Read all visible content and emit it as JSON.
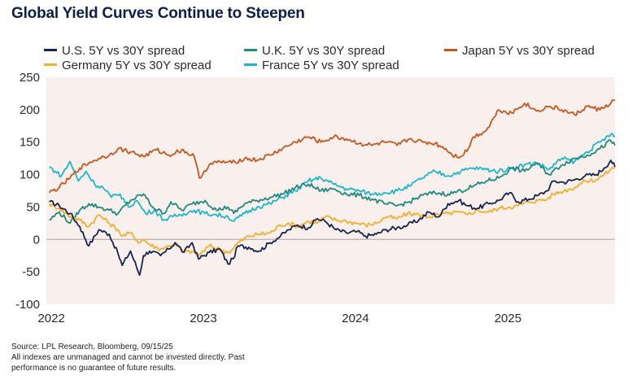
{
  "title": "Global Yield Curves Continue to Steepen",
  "footnotes": {
    "source": "Source: LPL Research, Bloomberg, 09/15/25",
    "line2": "All indexes are unmanaged and cannot be invested directly. Past",
    "line3": "performance is no guarantee of future results."
  },
  "colors": {
    "plot_background": "#f9efed",
    "zero_line": "#a6a6a6"
  },
  "chart_data": {
    "type": "line",
    "title": "Global Yield Curves Continue to Steepen",
    "xlabel": "",
    "ylabel": "",
    "x_ticks": [
      "2022",
      "2023",
      "2024",
      "2025"
    ],
    "x_range": [
      "2021-12-20",
      "2025-09-15"
    ],
    "y_ticks": [
      -100,
      -50,
      0,
      50,
      100,
      150,
      200,
      250
    ],
    "ylim": [
      -100,
      250
    ],
    "grid": false,
    "legend_position": "top",
    "series": [
      {
        "name": "U.S. 5Y vs 30Y spread",
        "color": "#17244e",
        "x": [
          "2021-12-27",
          "2022-01-20",
          "2022-02-15",
          "2022-03-10",
          "2022-04-01",
          "2022-04-25",
          "2022-05-20",
          "2022-06-10",
          "2022-06-20",
          "2022-07-10",
          "2022-08-01",
          "2022-08-10",
          "2022-08-25",
          "2022-09-20",
          "2022-10-10",
          "2022-10-25",
          "2022-11-15",
          "2022-12-05",
          "2022-12-20",
          "2023-01-15",
          "2023-02-10",
          "2023-03-01",
          "2023-03-13",
          "2023-03-25",
          "2023-04-20",
          "2023-05-15",
          "2023-06-10",
          "2023-07-05",
          "2023-07-25",
          "2023-08-15",
          "2023-09-10",
          "2023-10-01",
          "2023-10-20",
          "2023-11-15",
          "2023-12-10",
          "2024-01-05",
          "2024-01-25",
          "2024-02-20",
          "2024-03-15",
          "2024-04-10",
          "2024-05-05",
          "2024-06-01",
          "2024-06-25",
          "2024-07-20",
          "2024-08-10",
          "2024-09-05",
          "2024-09-25",
          "2024-10-20",
          "2024-11-15",
          "2024-12-10",
          "2025-01-05",
          "2025-01-25",
          "2025-02-20",
          "2025-03-15",
          "2025-04-05",
          "2025-04-20",
          "2025-05-15",
          "2025-06-10",
          "2025-07-05",
          "2025-08-01",
          "2025-08-20",
          "2025-09-05",
          "2025-09-15"
        ],
        "values": [
          58,
          52,
          40,
          20,
          -10,
          15,
          8,
          -22,
          -40,
          -18,
          -55,
          -25,
          -18,
          -25,
          -15,
          -5,
          -20,
          -5,
          -30,
          -20,
          -15,
          -38,
          -30,
          -10,
          -12,
          -18,
          -5,
          5,
          15,
          22,
          18,
          32,
          28,
          15,
          10,
          12,
          5,
          8,
          15,
          18,
          22,
          30,
          42,
          35,
          55,
          60,
          52,
          48,
          55,
          60,
          72,
          58,
          62,
          68,
          75,
          90,
          88,
          92,
          98,
          100,
          110,
          122,
          112
        ]
      },
      {
        "name": "Germany 5Y vs 30Y spread",
        "color": "#f4ae2f",
        "x": [
          "2021-12-27",
          "2022-01-20",
          "2022-02-15",
          "2022-03-10",
          "2022-04-01",
          "2022-04-25",
          "2022-05-20",
          "2022-06-10",
          "2022-06-20",
          "2022-07-10",
          "2022-08-01",
          "2022-08-10",
          "2022-08-25",
          "2022-09-20",
          "2022-10-10",
          "2022-10-25",
          "2022-11-15",
          "2022-12-05",
          "2022-12-20",
          "2023-01-15",
          "2023-02-10",
          "2023-03-01",
          "2023-03-13",
          "2023-03-25",
          "2023-04-20",
          "2023-05-15",
          "2023-06-10",
          "2023-07-05",
          "2023-07-25",
          "2023-08-15",
          "2023-09-10",
          "2023-10-01",
          "2023-10-20",
          "2023-11-15",
          "2023-12-10",
          "2024-01-05",
          "2024-01-25",
          "2024-02-20",
          "2024-03-15",
          "2024-04-10",
          "2024-05-05",
          "2024-06-01",
          "2024-06-25",
          "2024-07-20",
          "2024-08-10",
          "2024-09-05",
          "2024-09-25",
          "2024-10-20",
          "2024-11-15",
          "2024-12-10",
          "2025-01-05",
          "2025-01-25",
          "2025-02-20",
          "2025-03-15",
          "2025-04-05",
          "2025-04-20",
          "2025-05-15",
          "2025-06-10",
          "2025-07-05",
          "2025-08-01",
          "2025-08-20",
          "2025-09-05",
          "2025-09-15"
        ],
        "values": [
          55,
          48,
          35,
          30,
          20,
          38,
          25,
          15,
          5,
          10,
          -5,
          0,
          -8,
          -15,
          -10,
          -5,
          -20,
          -18,
          -25,
          -10,
          -15,
          -20,
          -15,
          -5,
          5,
          8,
          10,
          22,
          25,
          20,
          28,
          25,
          35,
          30,
          28,
          25,
          22,
          25,
          35,
          32,
          40,
          38,
          35,
          38,
          40,
          42,
          38,
          45,
          42,
          48,
          50,
          52,
          58,
          60,
          62,
          70,
          75,
          80,
          90,
          92,
          100,
          108,
          112
        ]
      },
      {
        "name": "U.K. 5Y vs 30Y spread",
        "color": "#1f8a7f",
        "x": [
          "2021-12-27",
          "2022-01-20",
          "2022-02-15",
          "2022-03-10",
          "2022-04-01",
          "2022-04-25",
          "2022-05-20",
          "2022-06-10",
          "2022-07-10",
          "2022-08-10",
          "2022-09-01",
          "2022-09-28",
          "2022-10-15",
          "2022-11-10",
          "2022-12-05",
          "2023-01-05",
          "2023-02-01",
          "2023-03-01",
          "2023-03-15",
          "2023-04-10",
          "2023-05-10",
          "2023-06-10",
          "2023-07-10",
          "2023-08-10",
          "2023-09-10",
          "2023-10-10",
          "2023-11-10",
          "2023-12-10",
          "2024-01-10",
          "2024-02-10",
          "2024-03-10",
          "2024-04-10",
          "2024-05-10",
          "2024-06-10",
          "2024-07-10",
          "2024-08-10",
          "2024-09-10",
          "2024-10-10",
          "2024-11-10",
          "2024-12-10",
          "2025-01-10",
          "2025-02-10",
          "2025-03-10",
          "2025-04-10",
          "2025-05-10",
          "2025-06-10",
          "2025-07-10",
          "2025-08-10",
          "2025-09-05",
          "2025-09-15"
        ],
        "values": [
          30,
          42,
          25,
          45,
          55,
          50,
          45,
          40,
          60,
          70,
          50,
          40,
          58,
          45,
          55,
          60,
          45,
          50,
          40,
          55,
          60,
          65,
          70,
          80,
          85,
          75,
          78,
          70,
          68,
          62,
          55,
          52,
          58,
          68,
          72,
          70,
          75,
          82,
          90,
          95,
          110,
          105,
          118,
          100,
          115,
          125,
          130,
          140,
          152,
          145
        ]
      },
      {
        "name": "France 5Y vs 30Y spread",
        "color": "#1eb6cf",
        "x": [
          "2021-12-27",
          "2022-01-10",
          "2022-01-25",
          "2022-02-15",
          "2022-03-07",
          "2022-03-25",
          "2022-04-15",
          "2022-05-05",
          "2022-05-25",
          "2022-06-15",
          "2022-07-05",
          "2022-07-25",
          "2022-08-15",
          "2022-09-05",
          "2022-09-28",
          "2022-10-20",
          "2022-11-15",
          "2022-12-10",
          "2023-01-05",
          "2023-02-01",
          "2023-03-01",
          "2023-03-15",
          "2023-04-10",
          "2023-05-10",
          "2023-06-10",
          "2023-07-10",
          "2023-08-10",
          "2023-09-10",
          "2023-10-10",
          "2023-11-10",
          "2023-12-10",
          "2024-01-10",
          "2024-02-10",
          "2024-03-10",
          "2024-04-10",
          "2024-05-10",
          "2024-06-10",
          "2024-07-10",
          "2024-08-10",
          "2024-09-10",
          "2024-10-10",
          "2024-11-10",
          "2024-12-10",
          "2025-01-10",
          "2025-02-10",
          "2025-03-10",
          "2025-04-10",
          "2025-05-10",
          "2025-06-10",
          "2025-07-10",
          "2025-08-10",
          "2025-09-05",
          "2025-09-15"
        ],
        "values": [
          112,
          105,
          98,
          120,
          90,
          105,
          85,
          80,
          65,
          70,
          50,
          60,
          40,
          45,
          30,
          35,
          40,
          45,
          40,
          38,
          35,
          28,
          40,
          50,
          55,
          65,
          75,
          90,
          95,
          85,
          78,
          75,
          70,
          72,
          75,
          82,
          95,
          105,
          98,
          105,
          110,
          108,
          105,
          110,
          115,
          118,
          108,
          125,
          120,
          135,
          150,
          162,
          158
        ]
      },
      {
        "name": "Japan 5Y vs 30Y spread",
        "color": "#c4581e",
        "x": [
          "2021-12-27",
          "2022-01-20",
          "2022-02-15",
          "2022-03-10",
          "2022-04-01",
          "2022-04-25",
          "2022-05-20",
          "2022-06-10",
          "2022-07-10",
          "2022-08-10",
          "2022-09-10",
          "2022-10-10",
          "2022-11-10",
          "2022-12-10",
          "2022-12-22",
          "2023-01-15",
          "2023-02-10",
          "2023-03-10",
          "2023-04-10",
          "2023-05-10",
          "2023-06-10",
          "2023-07-10",
          "2023-08-10",
          "2023-09-10",
          "2023-10-10",
          "2023-11-10",
          "2023-12-10",
          "2024-01-10",
          "2024-02-10",
          "2024-03-10",
          "2024-04-10",
          "2024-05-10",
          "2024-06-10",
          "2024-07-10",
          "2024-08-05",
          "2024-08-20",
          "2024-09-10",
          "2024-09-28",
          "2024-10-10",
          "2024-11-10",
          "2024-12-10",
          "2025-01-10",
          "2025-02-10",
          "2025-03-10",
          "2025-04-10",
          "2025-05-10",
          "2025-06-10",
          "2025-07-10",
          "2025-08-10",
          "2025-09-05",
          "2025-09-15"
        ],
        "values": [
          72,
          80,
          95,
          110,
          118,
          125,
          130,
          140,
          135,
          128,
          138,
          130,
          138,
          128,
          95,
          115,
          120,
          118,
          125,
          122,
          130,
          140,
          150,
          158,
          150,
          158,
          155,
          148,
          145,
          150,
          145,
          155,
          150,
          148,
          140,
          130,
          128,
          140,
          158,
          168,
          200,
          195,
          210,
          198,
          205,
          200,
          192,
          205,
          200,
          210,
          215
        ]
      }
    ]
  }
}
